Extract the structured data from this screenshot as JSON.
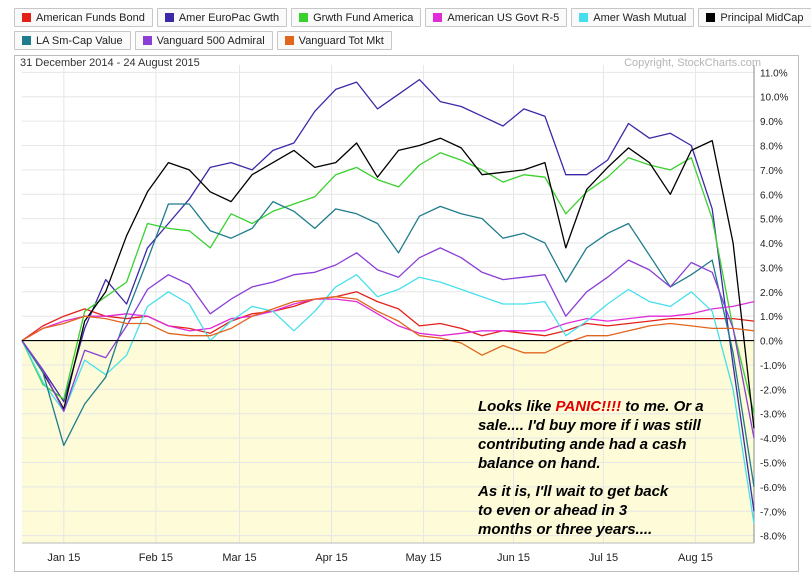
{
  "legend": [
    {
      "name": "American Funds Bond",
      "color": "#e32119"
    },
    {
      "name": "Amer EuroPac Gwth",
      "color": "#3a2aa8"
    },
    {
      "name": "Grwth Fund America",
      "color": "#3ad12f"
    },
    {
      "name": "American US Govt R-5",
      "color": "#e02bd7"
    },
    {
      "name": "Amer Wash Mutual",
      "color": "#46e0ec"
    },
    {
      "name": "Principal MidCap",
      "color": "#000000"
    },
    {
      "name": "LA Sm-Cap Value",
      "color": "#1f7c8c"
    },
    {
      "name": "Vanguard 500 Admiral",
      "color": "#8a3ed6"
    },
    {
      "name": "Vanguard Tot Mkt",
      "color": "#e0661f"
    }
  ],
  "header": {
    "date_range": "31 December 2014 - 24 August 2015",
    "copyright": "Copyright, StockCharts.com"
  },
  "annotation": {
    "line1_pre": "Looks like ",
    "line1_panic": "PANIC!!!!",
    "line1_post": " to me.  Or a",
    "line2": "sale....  I'd buy more if i was still",
    "line3": "contributing ande had a cash",
    "line4": "balance on hand.",
    "line5": "As it is, I'll wait to get back",
    "line6": "to even or ahead in 3",
    "line7": "months or three years...."
  },
  "chart_data": {
    "type": "line",
    "x": [
      "Jan 1",
      "Jan 8",
      "Jan 15",
      "Jan 22",
      "Jan 29",
      "Feb 5",
      "Feb 12",
      "Feb 19",
      "Feb 26",
      "Mar 5",
      "Mar 12",
      "Mar 19",
      "Mar 26",
      "Apr 2",
      "Apr 9",
      "Apr 16",
      "Apr 23",
      "Apr 30",
      "May 7",
      "May 14",
      "May 21",
      "May 28",
      "Jun 4",
      "Jun 11",
      "Jun 18",
      "Jun 25",
      "Jul 2",
      "Jul 9",
      "Jul 16",
      "Jul 23",
      "Jul 30",
      "Aug 6",
      "Aug 13",
      "Aug 18",
      "Aug 20",
      "Aug 24"
    ],
    "xticks": [
      "Jan 15",
      "Feb 15",
      "Mar 15",
      "Apr 15",
      "May 15",
      "Jun 15",
      "Jul 15",
      "Aug 15"
    ],
    "xtick_index": [
      2,
      6.4,
      10.4,
      14.8,
      19.2,
      23.5,
      27.8,
      32.2
    ],
    "yticks": [
      "11.0%",
      "10.0%",
      "9.0%",
      "8.0%",
      "7.0%",
      "6.0%",
      "5.0%",
      "4.0%",
      "3.0%",
      "2.0%",
      "1.0%",
      "0.0%",
      "-1.0%",
      "-2.0%",
      "-3.0%",
      "-4.0%",
      "-5.0%",
      "-6.0%",
      "-7.0%",
      "-8.0%"
    ],
    "ylim": [
      -8.3,
      11.3
    ],
    "series": [
      {
        "name": "American Funds Bond",
        "values": [
          0,
          0.6,
          1.0,
          1.3,
          1.0,
          0.9,
          1.0,
          0.6,
          0.5,
          0.3,
          0.8,
          1.1,
          1.2,
          1.4,
          1.7,
          1.8,
          2.0,
          1.6,
          1.3,
          0.6,
          0.7,
          0.5,
          0.2,
          0.4,
          0.3,
          0.2,
          0.4,
          0.7,
          0.6,
          0.7,
          0.8,
          0.9,
          0.9,
          0.9,
          0.9,
          0.8
        ]
      },
      {
        "name": "Amer EuroPac Gwth",
        "values": [
          0,
          -1.2,
          -2.5,
          0.5,
          2.5,
          1.5,
          3.8,
          4.8,
          5.8,
          7.1,
          7.3,
          7.0,
          7.8,
          8.1,
          9.4,
          10.3,
          10.6,
          9.5,
          10.1,
          10.7,
          9.8,
          9.6,
          9.2,
          8.8,
          9.5,
          9.2,
          6.8,
          6.8,
          7.4,
          8.9,
          8.3,
          8.5,
          8.0,
          5.4,
          -1.0,
          -7.0
        ]
      },
      {
        "name": "Grwth Fund America",
        "values": [
          0,
          -1.8,
          -2.4,
          1.2,
          1.8,
          2.4,
          4.8,
          4.6,
          4.5,
          3.8,
          5.2,
          4.8,
          5.3,
          5.6,
          5.9,
          6.8,
          7.1,
          6.6,
          6.3,
          7.2,
          7.7,
          7.4,
          7.0,
          6.5,
          6.8,
          6.7,
          5.2,
          6.1,
          6.7,
          7.5,
          7.2,
          7.0,
          7.5,
          5.0,
          0.5,
          -3.0
        ]
      },
      {
        "name": "American US Govt R-5",
        "values": [
          0,
          0.5,
          0.8,
          1.0,
          1.0,
          1.1,
          1.0,
          0.6,
          0.4,
          0.5,
          0.9,
          1.0,
          1.2,
          1.5,
          1.7,
          1.7,
          1.6,
          1.1,
          0.6,
          0.3,
          0.2,
          0.3,
          0.4,
          0.4,
          0.4,
          0.4,
          0.7,
          0.9,
          0.8,
          0.9,
          1.0,
          1.0,
          1.1,
          1.3,
          1.4,
          1.6
        ]
      },
      {
        "name": "Amer Wash Mutual",
        "values": [
          0,
          -1.7,
          -2.9,
          -0.8,
          -1.4,
          -0.6,
          1.4,
          2.0,
          1.5,
          0.0,
          0.8,
          1.4,
          1.2,
          0.4,
          1.2,
          2.2,
          2.7,
          1.8,
          2.1,
          2.6,
          2.4,
          2.1,
          1.8,
          1.5,
          1.5,
          1.6,
          0.2,
          0.8,
          1.5,
          2.1,
          1.6,
          1.4,
          2.0,
          1.2,
          -2.0,
          -7.5
        ]
      },
      {
        "name": "Principal MidCap",
        "values": [
          0,
          -1.3,
          -2.8,
          0.8,
          2.0,
          4.3,
          6.1,
          7.3,
          7.0,
          6.1,
          5.7,
          6.8,
          7.3,
          7.8,
          7.1,
          7.3,
          8.1,
          6.7,
          7.8,
          8.0,
          8.3,
          7.9,
          6.8,
          6.9,
          7.0,
          7.3,
          3.8,
          6.2,
          7.1,
          7.9,
          7.3,
          6.0,
          7.8,
          8.2,
          4.0,
          -3.6
        ]
      },
      {
        "name": "LA Sm-Cap Value",
        "values": [
          0,
          -1.3,
          -4.3,
          -2.6,
          -1.5,
          1.1,
          3.3,
          5.6,
          5.6,
          4.5,
          4.2,
          4.6,
          5.7,
          5.3,
          4.6,
          5.4,
          5.2,
          4.8,
          3.6,
          5.1,
          5.5,
          5.2,
          5.0,
          4.2,
          4.4,
          4.0,
          2.4,
          3.8,
          4.4,
          4.8,
          3.5,
          2.2,
          2.7,
          3.3,
          -0.5,
          -6.0
        ]
      },
      {
        "name": "Vanguard 500 Admiral",
        "values": [
          0,
          -1.2,
          -2.9,
          -0.4,
          -0.7,
          0.6,
          2.1,
          2.7,
          2.3,
          1.1,
          1.7,
          2.2,
          2.4,
          2.7,
          2.8,
          3.1,
          3.6,
          2.9,
          2.6,
          3.4,
          3.8,
          3.4,
          2.8,
          2.5,
          2.6,
          2.7,
          1.0,
          2.0,
          2.6,
          3.3,
          2.9,
          2.2,
          3.2,
          2.8,
          0.5,
          -4.0
        ]
      },
      {
        "name": "Vanguard Tot Mkt",
        "values": [
          0,
          0.5,
          0.7,
          1.0,
          0.9,
          0.7,
          0.7,
          0.3,
          0.2,
          0.2,
          0.5,
          1.0,
          1.3,
          1.6,
          1.7,
          1.8,
          1.7,
          1.2,
          0.8,
          0.2,
          0.1,
          -0.1,
          -0.6,
          -0.2,
          -0.5,
          -0.5,
          -0.1,
          0.2,
          0.2,
          0.4,
          0.6,
          0.7,
          0.6,
          0.5,
          0.5,
          0.4
        ]
      }
    ]
  }
}
